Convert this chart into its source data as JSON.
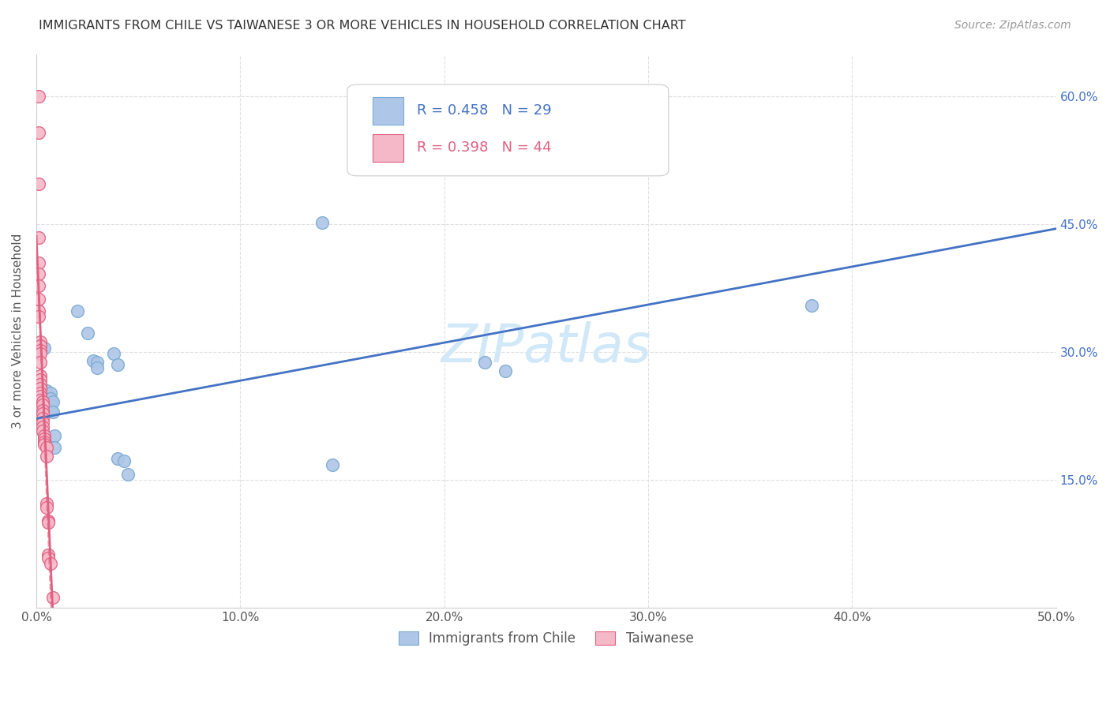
{
  "title": "IMMIGRANTS FROM CHILE VS TAIWANESE 3 OR MORE VEHICLES IN HOUSEHOLD CORRELATION CHART",
  "source": "Source: ZipAtlas.com",
  "ylabel": "3 or more Vehicles in Household",
  "xmin": 0.0,
  "xmax": 0.5,
  "ymin": 0.0,
  "ymax": 0.65,
  "xtick_labels": [
    "0.0%",
    "10.0%",
    "20.0%",
    "30.0%",
    "40.0%",
    "50.0%"
  ],
  "xtick_vals": [
    0.0,
    0.1,
    0.2,
    0.3,
    0.4,
    0.5
  ],
  "ytick_labels_right": [
    "15.0%",
    "30.0%",
    "45.0%",
    "60.0%"
  ],
  "ytick_vals_right": [
    0.15,
    0.3,
    0.45,
    0.6
  ],
  "blue_scatter": [
    [
      0.004,
      0.305
    ],
    [
      0.005,
      0.255
    ],
    [
      0.005,
      0.248
    ],
    [
      0.006,
      0.248
    ],
    [
      0.006,
      0.242
    ],
    [
      0.006,
      0.238
    ],
    [
      0.007,
      0.252
    ],
    [
      0.007,
      0.246
    ],
    [
      0.007,
      0.238
    ],
    [
      0.007,
      0.232
    ],
    [
      0.008,
      0.242
    ],
    [
      0.008,
      0.23
    ],
    [
      0.009,
      0.202
    ],
    [
      0.009,
      0.188
    ],
    [
      0.02,
      0.348
    ],
    [
      0.025,
      0.322
    ],
    [
      0.028,
      0.29
    ],
    [
      0.03,
      0.288
    ],
    [
      0.03,
      0.282
    ],
    [
      0.038,
      0.298
    ],
    [
      0.04,
      0.285
    ],
    [
      0.04,
      0.175
    ],
    [
      0.043,
      0.172
    ],
    [
      0.045,
      0.157
    ],
    [
      0.14,
      0.452
    ],
    [
      0.145,
      0.168
    ],
    [
      0.22,
      0.288
    ],
    [
      0.23,
      0.278
    ],
    [
      0.38,
      0.355
    ]
  ],
  "pink_scatter": [
    [
      0.001,
      0.6
    ],
    [
      0.001,
      0.558
    ],
    [
      0.001,
      0.498
    ],
    [
      0.001,
      0.435
    ],
    [
      0.001,
      0.405
    ],
    [
      0.001,
      0.392
    ],
    [
      0.001,
      0.378
    ],
    [
      0.001,
      0.362
    ],
    [
      0.001,
      0.348
    ],
    [
      0.001,
      0.342
    ],
    [
      0.002,
      0.312
    ],
    [
      0.002,
      0.308
    ],
    [
      0.002,
      0.302
    ],
    [
      0.002,
      0.298
    ],
    [
      0.002,
      0.288
    ],
    [
      0.002,
      0.272
    ],
    [
      0.002,
      0.268
    ],
    [
      0.002,
      0.262
    ],
    [
      0.002,
      0.258
    ],
    [
      0.002,
      0.252
    ],
    [
      0.002,
      0.248
    ],
    [
      0.002,
      0.244
    ],
    [
      0.003,
      0.242
    ],
    [
      0.003,
      0.238
    ],
    [
      0.003,
      0.232
    ],
    [
      0.003,
      0.228
    ],
    [
      0.003,
      0.222
    ],
    [
      0.003,
      0.218
    ],
    [
      0.003,
      0.212
    ],
    [
      0.003,
      0.208
    ],
    [
      0.004,
      0.202
    ],
    [
      0.004,
      0.198
    ],
    [
      0.004,
      0.195
    ],
    [
      0.004,
      0.192
    ],
    [
      0.005,
      0.188
    ],
    [
      0.005,
      0.178
    ],
    [
      0.005,
      0.122
    ],
    [
      0.005,
      0.118
    ],
    [
      0.006,
      0.102
    ],
    [
      0.006,
      0.1
    ],
    [
      0.006,
      0.062
    ],
    [
      0.006,
      0.058
    ],
    [
      0.007,
      0.052
    ],
    [
      0.008,
      0.012
    ]
  ],
  "blue_line_start_y": 0.222,
  "blue_line_end_y": 0.445,
  "pink_line_solid_x1": 0.0,
  "pink_line_solid_x2": 0.008,
  "pink_line_dash_x1": 0.0,
  "pink_line_dash_x2": 0.055,
  "blue_line_color": "#4472c4",
  "pink_line_color": "#e06080",
  "watermark": "ZIPatlas",
  "watermark_color": "#d0e8f8",
  "background_color": "#ffffff",
  "grid_color": "#e0e0e0"
}
